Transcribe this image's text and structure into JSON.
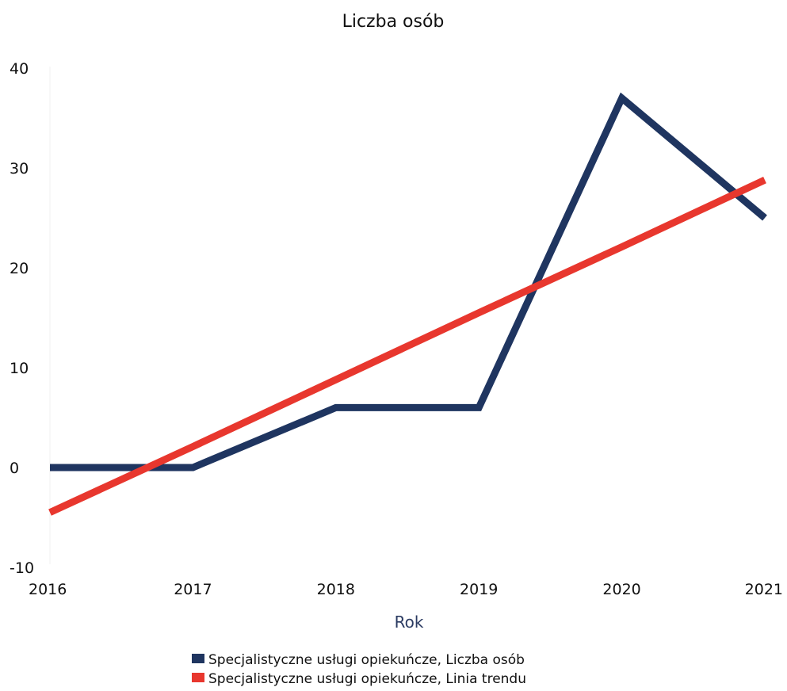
{
  "chart_data": {
    "type": "line",
    "title": "Liczba osób",
    "xlabel": "Rok",
    "ylabel": "",
    "x": [
      2016,
      2017,
      2018,
      2019,
      2020,
      2021
    ],
    "x_tick_labels": [
      "2016",
      "2017",
      "2018",
      "2019",
      "2020",
      "2021"
    ],
    "y_ticks": [
      -10,
      0,
      10,
      20,
      30,
      40
    ],
    "y_tick_labels": [
      "-10",
      "0",
      "10",
      "20",
      "30",
      "40"
    ],
    "xlim": [
      2016,
      2021
    ],
    "ylim": [
      -10,
      40
    ],
    "grid": false,
    "legend_position": "bottom",
    "series": [
      {
        "name": "Specjalistyczne usługi opiekuńcze, Liczba osób",
        "color": "#1f3560",
        "values": [
          0,
          0,
          6,
          6,
          37,
          25
        ]
      },
      {
        "name": "Specjalistyczne usługi opiekuńcze, Linia trendu",
        "color": "#e8372e",
        "values": [
          -4.5,
          2.1,
          8.8,
          15.5,
          22.1,
          28.8
        ]
      }
    ]
  }
}
